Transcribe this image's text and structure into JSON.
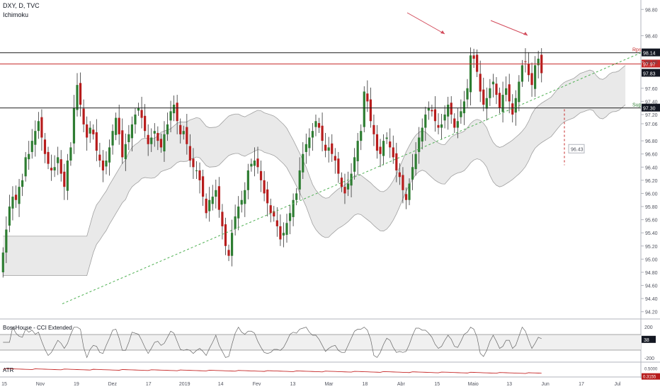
{
  "header": {
    "symbol": "DXY, D, TVC",
    "indicator": "Ichimoku"
  },
  "panes": {
    "cci_title": "BossHouse - CCI Extended",
    "atr_title": "ATR"
  },
  "colors": {
    "up": "#2e7d32",
    "down": "#b71c1c",
    "cloud": "#e3e3e3",
    "grid": "#e1e3ea",
    "trend": "#4caf50",
    "resistance": "#c62828",
    "arrow": "#d24a5a"
  },
  "chart_data": {
    "type": "candlestick",
    "y_axis_ticks": [
      "98.80",
      "98.40",
      "98.00",
      "97.60",
      "97.40",
      "97.20",
      "97.06",
      "96.80",
      "96.60",
      "96.40",
      "96.20",
      "96.00",
      "95.80",
      "95.60",
      "95.40",
      "95.20",
      "95.00",
      "94.80",
      "94.60",
      "94.40",
      "94.20"
    ],
    "ylim": [
      94.1,
      98.9
    ],
    "x_axis_labels": [
      "15",
      "Nov",
      "19",
      "Dez",
      "17",
      "2019",
      "14",
      "Fev",
      "13",
      "Mar",
      "18",
      "Abr",
      "15",
      "Maio",
      "13",
      "Jun",
      "17",
      "Jul"
    ],
    "close": [
      95.1,
      95.45,
      95.8,
      95.95,
      95.9,
      96.1,
      96.2,
      96.55,
      96.6,
      96.8,
      96.95,
      97.1,
      96.85,
      96.6,
      96.45,
      96.35,
      96.4,
      96.55,
      96.3,
      96.1,
      96.5,
      96.7,
      97.3,
      97.65,
      97.35,
      97.05,
      96.85,
      97.0,
      96.9,
      96.65,
      96.5,
      96.35,
      96.5,
      96.7,
      96.95,
      97.15,
      96.9,
      96.55,
      96.75,
      96.9,
      97.05,
      97.2,
      97.3,
      97.15,
      96.95,
      96.75,
      96.85,
      96.95,
      96.8,
      96.7,
      96.9,
      97.05,
      97.25,
      97.35,
      97.1,
      96.9,
      96.95,
      96.75,
      96.5,
      96.4,
      96.35,
      96.2,
      95.95,
      95.7,
      95.9,
      95.95,
      96.05,
      95.75,
      95.5,
      95.2,
      95.05,
      95.4,
      95.65,
      95.8,
      95.9,
      96.05,
      96.35,
      96.45,
      96.5,
      96.4,
      96.2,
      96.0,
      95.85,
      95.7,
      95.65,
      95.5,
      95.3,
      95.4,
      95.55,
      95.7,
      95.9,
      96.0,
      96.35,
      96.6,
      96.75,
      96.85,
      96.95,
      97.1,
      97.0,
      96.8,
      96.65,
      96.7,
      96.6,
      96.5,
      96.3,
      96.1,
      96.0,
      96.15,
      96.3,
      96.55,
      96.8,
      96.95,
      97.55,
      97.4,
      97.1,
      96.9,
      96.65,
      96.6,
      96.8,
      96.85,
      96.7,
      96.55,
      96.35,
      96.25,
      96.05,
      95.9,
      96.15,
      96.4,
      96.6,
      96.85,
      97.0,
      97.2,
      97.3,
      97.25,
      97.1,
      97.0,
      97.05,
      97.2,
      97.35,
      97.2,
      97.0,
      97.1,
      97.25,
      97.4,
      97.6,
      98.1,
      98.05,
      97.85,
      97.55,
      97.35,
      97.45,
      97.6,
      97.7,
      97.5,
      97.3,
      97.5,
      97.6,
      97.4,
      97.2,
      97.45,
      97.7,
      97.95,
      98.0,
      97.8,
      97.65,
      97.95,
      98.05,
      97.83
    ],
    "levels": [
      {
        "label": "98.14",
        "tag": "Rps",
        "value": 98.14
      },
      {
        "label": "97.97",
        "value": 97.97
      },
      {
        "label": "97.83",
        "value": 97.83
      },
      {
        "label": "97.30",
        "tag": "Sup",
        "value": 97.3
      }
    ],
    "target_label": "96.43",
    "cci": {
      "ticks": [
        "200",
        "38",
        "-200"
      ],
      "current": "38"
    },
    "atr": {
      "ticks": [
        "0.5000"
      ],
      "current": "0.3155"
    }
  }
}
